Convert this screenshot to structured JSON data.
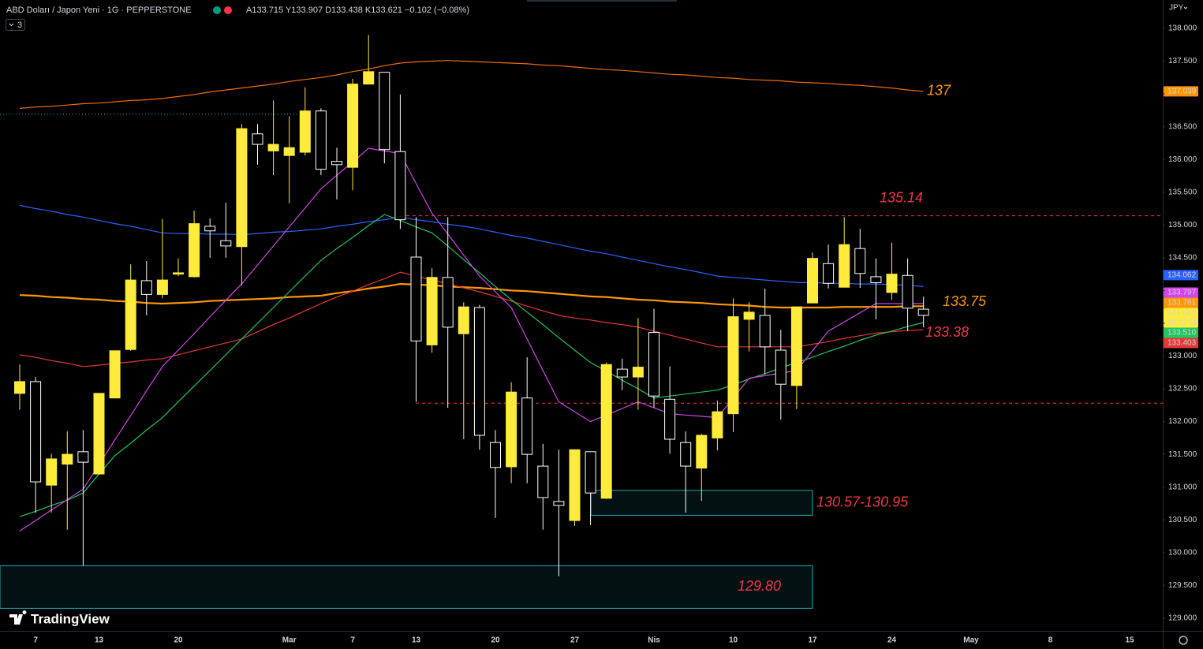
{
  "chart_data": {
    "type": "candlestick",
    "title": "ABD Doları / Japon Yeni · 1G · PEPPERSTONE",
    "ohlc_text": "A133.715 Y133.907 D133.438 K133.621 −0.102 (−0.08%)",
    "indicator_count": "3",
    "currency": "JPY",
    "logo": "TradingView",
    "categories": [
      null,
      "7",
      null,
      null,
      null,
      "13",
      null,
      null,
      null,
      null,
      "20",
      null,
      null,
      null,
      null,
      null,
      null,
      "Mar",
      null,
      null,
      null,
      "7",
      null,
      null,
      null,
      "13",
      null,
      null,
      null,
      null,
      "20",
      null,
      null,
      null,
      null,
      "27",
      null,
      null,
      null,
      null,
      "Nis",
      null,
      null,
      null,
      null,
      "10",
      null,
      null,
      null,
      null,
      "17",
      null,
      null,
      null,
      null,
      "24",
      null,
      null,
      null,
      null,
      "May",
      null,
      null,
      null,
      null,
      "8",
      null,
      null,
      null,
      null,
      "15"
    ],
    "open": [
      132.43,
      132.61,
      131.03,
      131.35,
      131.54,
      131.2,
      132.36,
      133.1,
      134.15,
      133.94,
      134.25,
      134.21,
      134.98,
      134.76,
      134.67,
      136.39,
      136.13,
      136.06,
      136.11,
      136.74,
      135.97,
      135.88,
      137.15,
      137.33,
      136.12,
      134.51,
      133.17,
      134.2,
      133.34,
      133.74,
      131.68,
      131.31,
      132.36,
      131.32,
      130.78,
      130.49,
      131.54,
      130.83,
      132.8,
      132.68,
      133.36,
      132.34,
      131.68,
      131.29,
      131.75,
      132.12,
      133.56,
      133.62,
      133.09,
      132.55,
      133.81,
      134.41,
      134.05,
      134.64,
      134.21,
      133.97,
      134.23,
      133.715,
      null,
      null,
      null,
      null,
      null,
      null,
      null,
      null,
      null,
      null,
      null,
      null,
      null
    ],
    "high": [
      132.87,
      132.68,
      131.51,
      131.85,
      131.87,
      132.43,
      133.08,
      134.4,
      134.45,
      135.09,
      134.49,
      135.22,
      135.1,
      135.34,
      136.54,
      136.54,
      136.9,
      136.66,
      137.1,
      136.78,
      136.18,
      137.23,
      137.9,
      137.33,
      136.99,
      135.12,
      134.34,
      135.12,
      133.82,
      133.78,
      131.87,
      132.6,
      132.98,
      131.66,
      131.57,
      131.57,
      131.54,
      132.9,
      132.96,
      133.58,
      133.72,
      132.84,
      131.85,
      131.81,
      132.32,
      133.88,
      133.82,
      134.03,
      133.4,
      133.75,
      134.58,
      134.7,
      135.12,
      134.94,
      134.49,
      134.73,
      134.49,
      133.907,
      null,
      null,
      null,
      null,
      null,
      null,
      null,
      null,
      null,
      null,
      null,
      null,
      null
    ],
    "low": [
      132.18,
      130.61,
      130.61,
      130.35,
      129.8,
      131.19,
      132.36,
      133.08,
      133.62,
      133.88,
      134.22,
      134.2,
      134.5,
      134.5,
      134.08,
      135.92,
      135.76,
      135.33,
      136.06,
      135.76,
      135.39,
      135.53,
      137.15,
      135.94,
      134.94,
      132.3,
      133.05,
      132.21,
      131.73,
      131.57,
      130.53,
      131.06,
      131.06,
      130.35,
      129.64,
      130.41,
      130.42,
      130.82,
      132.48,
      132.18,
      132.21,
      131.51,
      130.61,
      130.79,
      131.56,
      131.84,
      133.07,
      132.72,
      132.03,
      132.19,
      133.81,
      134.03,
      134.05,
      134.04,
      133.56,
      133.86,
      133.38,
      133.438,
      null,
      null,
      null,
      null,
      null,
      null,
      null,
      null,
      null,
      null,
      null,
      null,
      null
    ],
    "close": [
      132.61,
      131.08,
      131.43,
      131.5,
      131.38,
      132.43,
      133.08,
      134.16,
      133.94,
      134.16,
      134.27,
      135.02,
      134.91,
      134.68,
      136.47,
      136.23,
      136.23,
      136.18,
      136.74,
      135.85,
      135.92,
      137.15,
      137.34,
      136.15,
      135.08,
      133.23,
      134.2,
      133.44,
      133.75,
      131.79,
      131.3,
      132.45,
      131.5,
      130.84,
      130.72,
      131.57,
      130.91,
      132.87,
      132.68,
      132.83,
      132.39,
      131.73,
      131.32,
      131.79,
      132.15,
      133.6,
      133.67,
      133.14,
      132.57,
      133.75,
      134.49,
      134.11,
      134.7,
      134.26,
      134.12,
      134.25,
      133.73,
      133.621,
      null,
      null,
      null,
      null,
      null,
      null,
      null,
      null,
      null,
      null,
      null,
      null,
      null
    ],
    "up_color": "#ffeb3b",
    "down_color": "#000000",
    "down_border": "#ffffff",
    "lines": [
      {
        "color": "#ef6c00",
        "width": 1.2,
        "values": [
          136.78,
          136.8,
          136.81,
          136.83,
          136.85,
          136.86,
          136.88,
          136.9,
          136.91,
          136.93,
          136.96,
          136.99,
          137.03,
          137.06,
          137.09,
          137.12,
          137.15,
          137.19,
          137.22,
          137.25,
          137.29,
          137.34,
          137.38,
          137.43,
          137.47,
          137.49,
          137.5,
          137.51,
          137.5,
          137.49,
          137.48,
          137.47,
          137.46,
          137.44,
          137.43,
          137.41,
          137.39,
          137.37,
          137.36,
          137.34,
          137.32,
          137.3,
          137.29,
          137.27,
          137.25,
          137.24,
          137.22,
          137.21,
          137.2,
          137.18,
          137.17,
          137.16,
          137.14,
          137.13,
          137.11,
          137.09,
          137.06,
          137.04,
          null,
          null,
          null,
          null,
          null,
          null,
          null,
          null,
          null,
          null,
          null,
          null,
          null
        ]
      },
      {
        "color": "#2962ff",
        "width": 1.2,
        "values": [
          135.3,
          135.25,
          135.21,
          135.16,
          135.12,
          135.07,
          135.02,
          134.98,
          134.93,
          134.88,
          134.87,
          134.87,
          134.86,
          134.86,
          134.85,
          134.87,
          134.89,
          134.9,
          134.92,
          134.94,
          134.98,
          135.01,
          135.05,
          135.08,
          135.12,
          135.08,
          135.05,
          135.01,
          134.98,
          134.94,
          134.89,
          134.84,
          134.8,
          134.75,
          134.7,
          134.65,
          134.6,
          134.56,
          134.51,
          134.46,
          134.41,
          134.36,
          134.32,
          134.27,
          134.22,
          134.2,
          134.18,
          134.16,
          134.14,
          134.12,
          134.12,
          134.11,
          134.11,
          134.1,
          134.1,
          134.09,
          134.08,
          134.06,
          null,
          null,
          null,
          null,
          null,
          null,
          null,
          null,
          null,
          null,
          null,
          null,
          null
        ]
      },
      {
        "color": "#ff9800",
        "width": 2.2,
        "values": [
          133.93,
          133.92,
          133.9,
          133.89,
          133.87,
          133.86,
          133.84,
          133.83,
          133.81,
          133.8,
          133.81,
          133.82,
          133.84,
          133.85,
          133.86,
          133.87,
          133.88,
          133.9,
          133.91,
          133.92,
          133.96,
          133.99,
          134.03,
          134.06,
          134.1,
          134.09,
          134.08,
          134.06,
          134.05,
          134.04,
          134.02,
          134.0,
          133.99,
          133.97,
          133.95,
          133.93,
          133.91,
          133.9,
          133.88,
          133.86,
          133.85,
          133.83,
          133.82,
          133.81,
          133.79,
          133.78,
          133.77,
          133.75,
          133.74,
          133.74,
          133.74,
          133.74,
          133.75,
          133.75,
          133.75,
          133.75,
          133.76,
          133.76,
          null,
          null,
          null,
          null,
          null,
          null,
          null,
          null,
          null,
          null,
          null,
          null,
          null
        ]
      },
      {
        "color": "#e53935",
        "width": 1.2,
        "values": [
          133.02,
          132.98,
          132.93,
          132.89,
          132.84,
          132.86,
          132.89,
          132.91,
          132.94,
          132.96,
          133.02,
          133.08,
          133.14,
          133.2,
          133.26,
          133.37,
          133.48,
          133.58,
          133.69,
          133.8,
          133.9,
          133.99,
          134.09,
          134.18,
          134.28,
          134.22,
          134.16,
          134.1,
          134.04,
          133.98,
          133.91,
          133.84,
          133.76,
          133.69,
          133.62,
          133.58,
          133.55,
          133.51,
          133.48,
          133.44,
          133.38,
          133.32,
          133.26,
          133.2,
          133.14,
          133.14,
          133.14,
          133.14,
          133.14,
          133.14,
          133.18,
          133.22,
          133.27,
          133.31,
          133.35,
          133.37,
          133.39,
          133.4,
          null,
          null,
          null,
          null,
          null,
          null,
          null,
          null,
          null,
          null,
          null,
          null,
          null
        ]
      },
      {
        "color": "#22c55e",
        "width": 1.2,
        "values": [
          130.55,
          130.63,
          130.72,
          130.8,
          130.91,
          131.2,
          131.48,
          131.67,
          131.87,
          132.06,
          132.3,
          132.54,
          132.78,
          133.02,
          133.26,
          133.5,
          133.74,
          133.98,
          134.22,
          134.46,
          134.64,
          134.81,
          134.99,
          135.16,
          135.07,
          134.97,
          134.88,
          134.68,
          134.47,
          134.27,
          134.06,
          133.86,
          133.67,
          133.48,
          133.28,
          133.09,
          132.9,
          132.77,
          132.63,
          132.5,
          132.36,
          132.39,
          132.42,
          132.45,
          132.48,
          132.56,
          132.65,
          132.73,
          132.82,
          132.9,
          132.98,
          133.07,
          133.15,
          133.24,
          133.32,
          133.38,
          133.45,
          133.51,
          null,
          null,
          null,
          null,
          null,
          null,
          null,
          null,
          null,
          null,
          null,
          null,
          null
        ]
      },
      {
        "color": "#d046e8",
        "width": 1.2,
        "values": [
          130.33,
          130.49,
          130.65,
          130.81,
          130.97,
          131.34,
          131.72,
          132.09,
          132.47,
          132.84,
          133.09,
          133.34,
          133.6,
          133.85,
          134.1,
          134.39,
          134.68,
          134.97,
          135.26,
          135.55,
          135.76,
          135.96,
          136.17,
          136.13,
          136.09,
          135.63,
          135.18,
          134.86,
          134.54,
          134.22,
          133.98,
          133.74,
          133.26,
          132.78,
          132.3,
          132.15,
          132.0,
          132.1,
          132.2,
          132.3,
          132.21,
          132.12,
          132.1,
          132.08,
          132.06,
          132.36,
          132.66,
          132.7,
          132.74,
          132.78,
          133.08,
          133.38,
          133.52,
          133.66,
          133.8,
          133.8,
          133.8,
          133.8,
          null,
          null,
          null,
          null,
          null,
          null,
          null,
          null,
          null,
          null,
          null,
          null,
          null
        ]
      }
    ],
    "ylim": [
      128.806,
      138.433
    ],
    "yticks": [
      {
        "value": 129,
        "label": "129.000"
      },
      {
        "value": 129.5,
        "label": "129.500"
      },
      {
        "value": 130,
        "label": "130.000"
      },
      {
        "value": 130.5,
        "label": "130.500"
      },
      {
        "value": 131,
        "label": "131.000"
      },
      {
        "value": 131.5,
        "label": "131.500"
      },
      {
        "value": 132,
        "label": "132.000"
      },
      {
        "value": 132.5,
        "label": "132.500"
      },
      {
        "value": 133,
        "label": "133.000"
      },
      {
        "value": 133.5,
        "label": "133.500"
      },
      {
        "value": 134,
        "label": "134.000"
      },
      {
        "value": 134.5,
        "label": "134.500"
      },
      {
        "value": 135,
        "label": "135.000"
      },
      {
        "value": 135.5,
        "label": "135.500"
      },
      {
        "value": 136,
        "label": "136.000"
      },
      {
        "value": 136.5,
        "label": "136.500"
      },
      {
        "value": 137,
        "label": "137.000"
      },
      {
        "value": 137.5,
        "label": "137.500"
      },
      {
        "value": 138,
        "label": "138.000"
      }
    ],
    "grid": false,
    "price_tags": [
      {
        "value": 137.039,
        "label": "137.039",
        "color": "#ff9800",
        "text_color": "#000000"
      },
      {
        "value": 134.062,
        "label": "134.062",
        "color": "#2962ff",
        "text_color": "#ffffff"
      },
      {
        "value": 133.797,
        "label": "133.797",
        "color": "#d046e8",
        "text_color": "#ffffff"
      },
      {
        "value": 133.761,
        "label": "133.761",
        "color": "#ff9800",
        "text_color": "#000000"
      },
      {
        "value": 133.621,
        "label": "133.621",
        "sub": "15:17:16",
        "color": "#ffeb3b",
        "text_color": "#000000"
      },
      {
        "value": 133.51,
        "label": "133.510",
        "color": "#22c55e",
        "text_color": "#000000"
      },
      {
        "value": 133.403,
        "label": "133.403",
        "color": "#e53935",
        "text_color": "#ffffff"
      }
    ],
    "levels": [
      {
        "value": 135.14,
        "label": "135.14",
        "color": "#f23645",
        "style": "dashed"
      },
      {
        "value": 132.28,
        "color": "#f23645",
        "style": "dashed"
      },
      {
        "value": 136.69,
        "color": "#26c6da",
        "style": "dotted"
      }
    ],
    "zones": [
      {
        "label": "130.57-130.95",
        "low": 130.57,
        "high": 130.95,
        "color": "#26a6b8"
      },
      {
        "label": "129.80",
        "low": 129.15,
        "high": 129.8,
        "color": "#26a6b8"
      }
    ],
    "annotations": [
      {
        "text": "137",
        "color": "#ff9800"
      },
      {
        "text": "133.75",
        "color": "#ff9800"
      },
      {
        "text": "133.38",
        "color": "#f23645"
      }
    ],
    "label_color": "#f23645"
  }
}
